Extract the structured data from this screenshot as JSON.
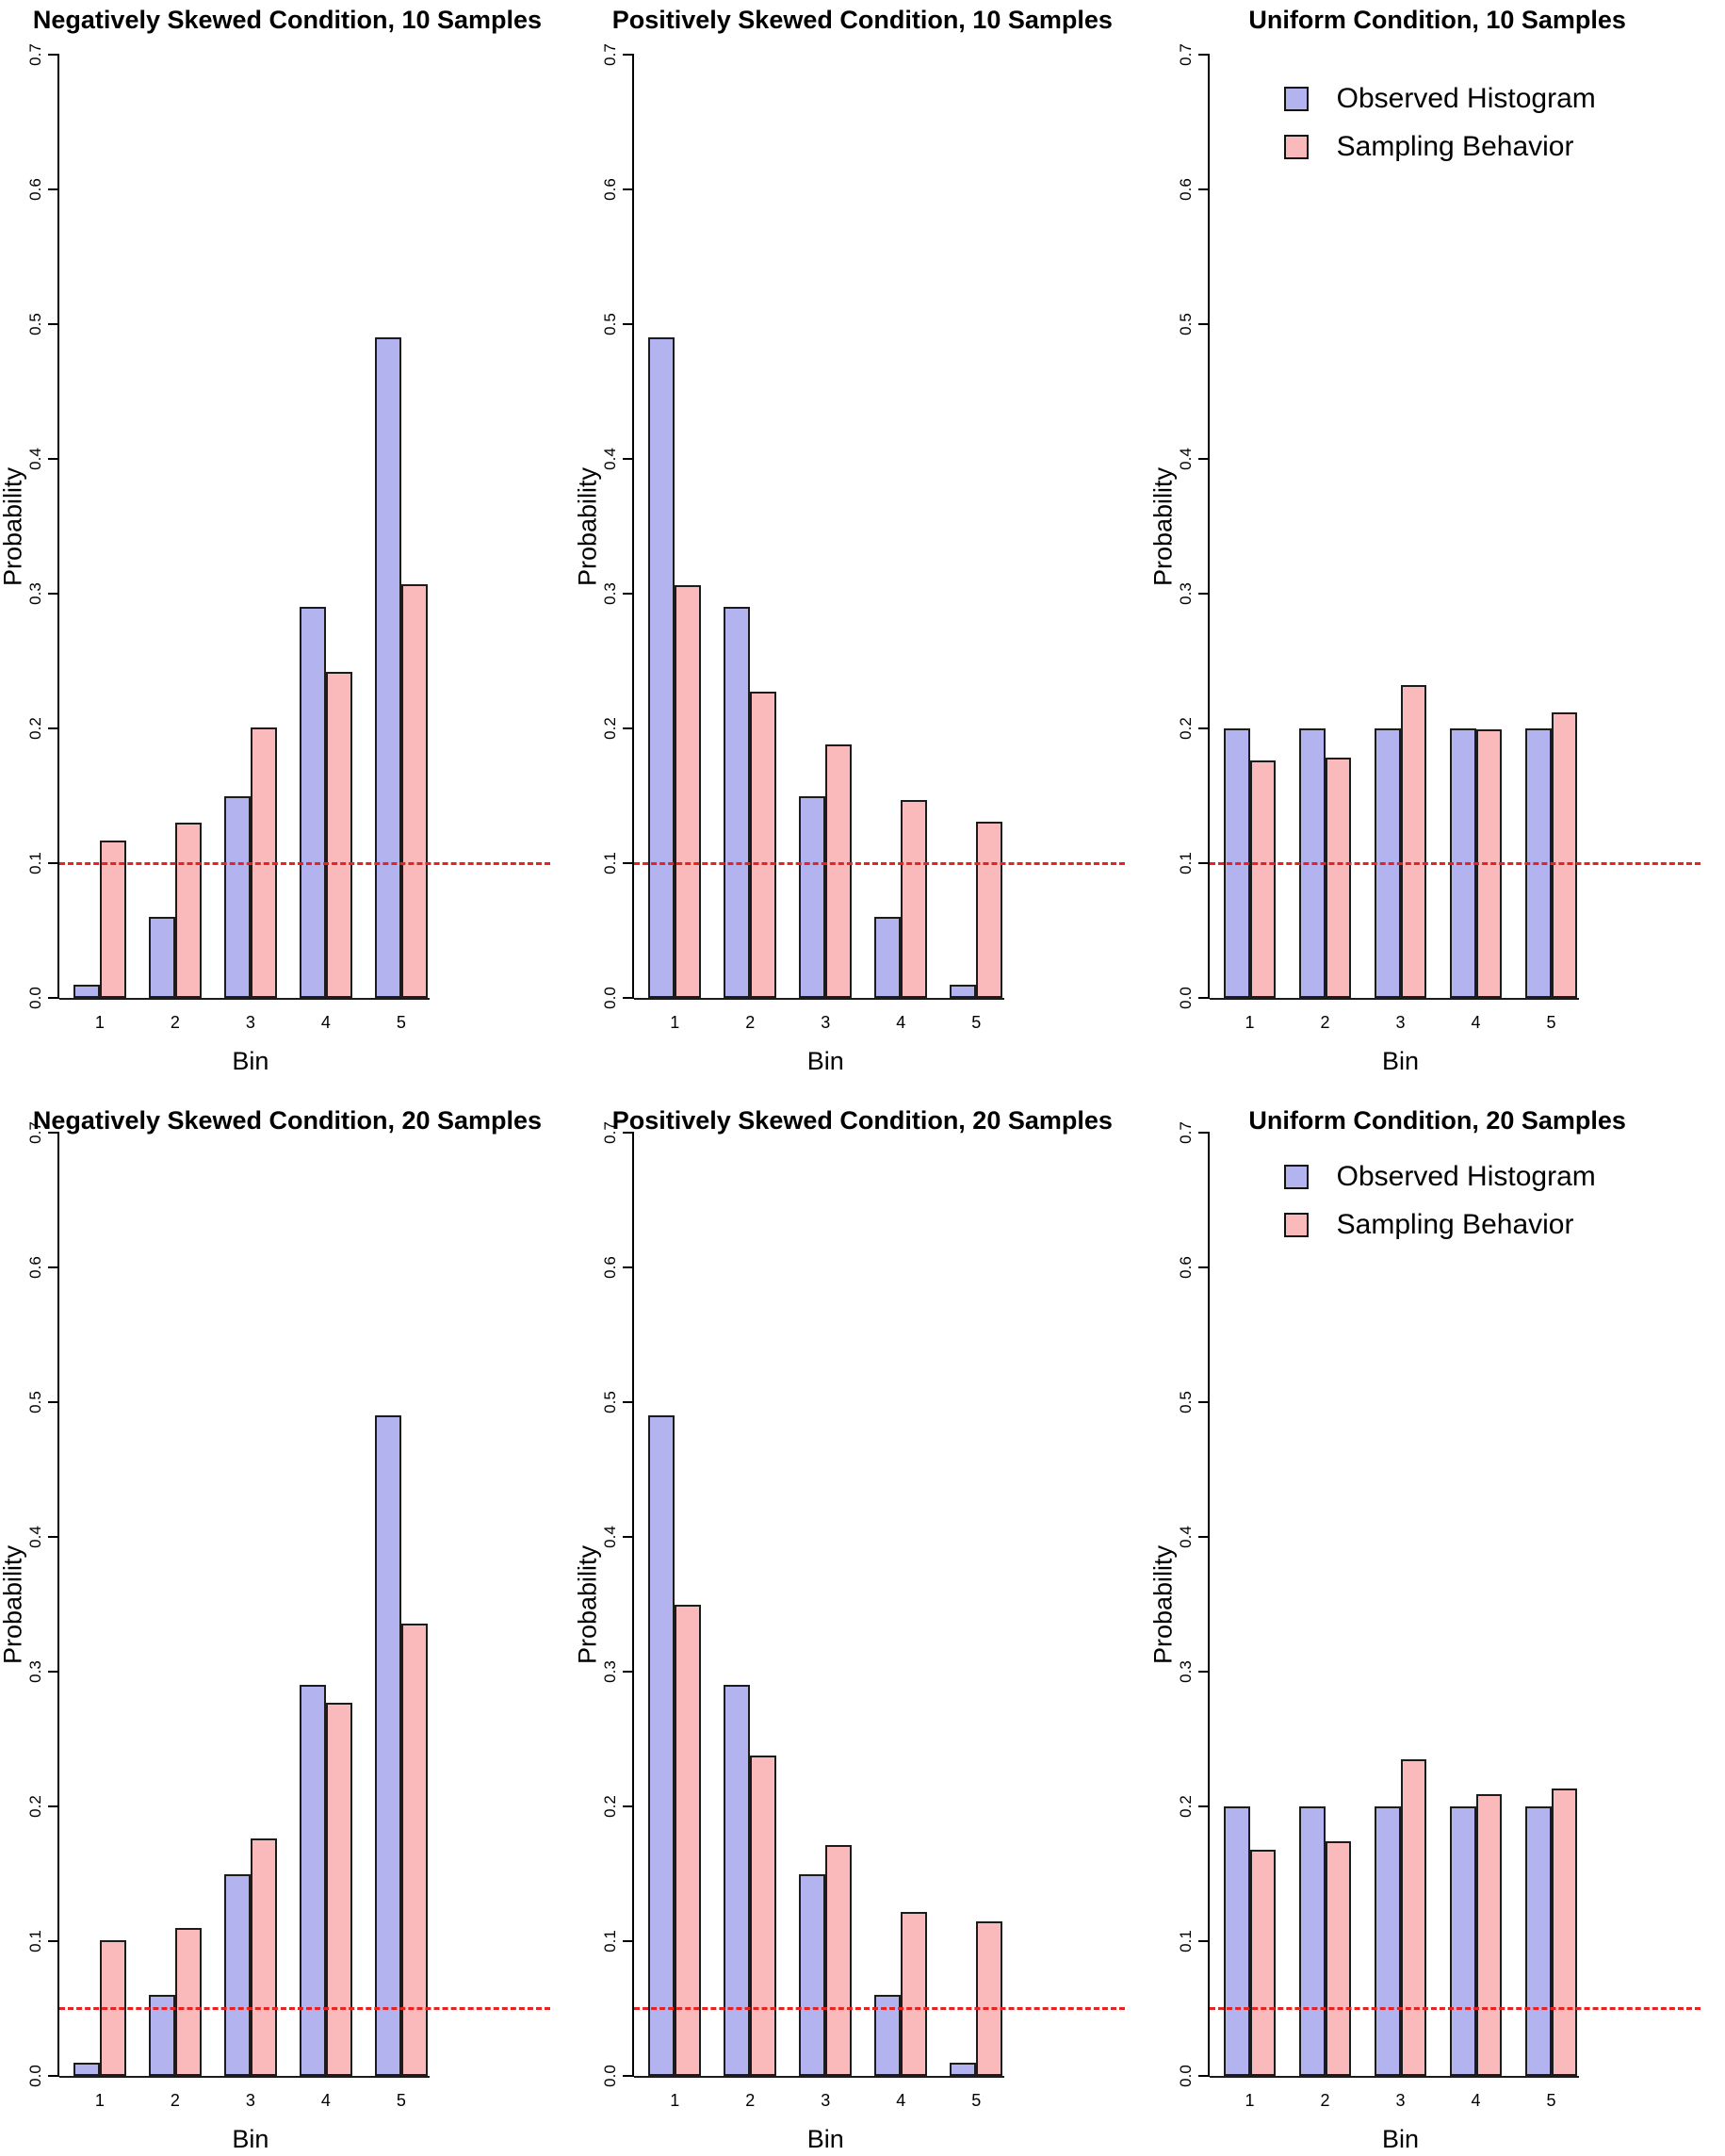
{
  "figure": {
    "rows": 2,
    "cols": 3,
    "description": "Grouped bar charts of observed histogram vs sampling behavior probabilities by bin"
  },
  "legend": {
    "items": [
      {
        "label": "Observed Histogram",
        "color": "#b3b3f0"
      },
      {
        "label": "Sampling Behavior",
        "color": "#fab9ba"
      }
    ]
  },
  "axes": {
    "xlabel": "Bin",
    "ylabel": "Probability",
    "ylim": [
      0,
      0.7
    ],
    "yticks": [
      "0.0",
      "0.1",
      "0.2",
      "0.3",
      "0.4",
      "0.5",
      "0.6",
      "0.7"
    ],
    "categories": [
      "1",
      "2",
      "3",
      "4",
      "5"
    ]
  },
  "ref_line_color": "#e62320",
  "bar_colors": {
    "observed": "#b3b3f0",
    "sampling": "#fab9ba",
    "border": "#1c1c1c"
  },
  "chart_data": [
    {
      "type": "bar",
      "title": "Negatively Skewed Condition, 10 Samples",
      "xlabel": "Bin",
      "ylabel": "Probability",
      "ylim": [
        0,
        0.7
      ],
      "categories": [
        "1",
        "2",
        "3",
        "4",
        "5"
      ],
      "ref_line": 0.1,
      "show_legend": false,
      "series": [
        {
          "name": "Observed Histogram",
          "values": [
            0.01,
            0.06,
            0.15,
            0.29,
            0.49
          ]
        },
        {
          "name": "Sampling Behavior",
          "values": [
            0.117,
            0.13,
            0.201,
            0.242,
            0.307
          ]
        }
      ]
    },
    {
      "type": "bar",
      "title": "Positively Skewed Condition, 10 Samples",
      "xlabel": "Bin",
      "ylabel": "Probability",
      "ylim": [
        0,
        0.7
      ],
      "categories": [
        "1",
        "2",
        "3",
        "4",
        "5"
      ],
      "ref_line": 0.1,
      "show_legend": false,
      "series": [
        {
          "name": "Observed Histogram",
          "values": [
            0.49,
            0.29,
            0.15,
            0.06,
            0.01
          ]
        },
        {
          "name": "Sampling Behavior",
          "values": [
            0.306,
            0.227,
            0.188,
            0.147,
            0.131
          ]
        }
      ]
    },
    {
      "type": "bar",
      "title": "Uniform Condition, 10 Samples",
      "xlabel": "Bin",
      "ylabel": "Probability",
      "ylim": [
        0,
        0.7
      ],
      "categories": [
        "1",
        "2",
        "3",
        "4",
        "5"
      ],
      "ref_line": 0.1,
      "show_legend": true,
      "series": [
        {
          "name": "Observed Histogram",
          "values": [
            0.2,
            0.2,
            0.2,
            0.2,
            0.2
          ]
        },
        {
          "name": "Sampling Behavior",
          "values": [
            0.176,
            0.178,
            0.232,
            0.199,
            0.212
          ]
        }
      ]
    },
    {
      "type": "bar",
      "title": "Negatively Skewed Condition, 20 Samples",
      "xlabel": "Bin",
      "ylabel": "Probability",
      "ylim": [
        0,
        0.7
      ],
      "categories": [
        "1",
        "2",
        "3",
        "4",
        "5"
      ],
      "ref_line": 0.05,
      "show_legend": false,
      "series": [
        {
          "name": "Observed Histogram",
          "values": [
            0.01,
            0.06,
            0.15,
            0.29,
            0.49
          ]
        },
        {
          "name": "Sampling Behavior",
          "values": [
            0.101,
            0.11,
            0.176,
            0.277,
            0.336
          ]
        }
      ]
    },
    {
      "type": "bar",
      "title": "Positively Skewed Condition, 20 Samples",
      "xlabel": "Bin",
      "ylabel": "Probability",
      "ylim": [
        0,
        0.7
      ],
      "categories": [
        "1",
        "2",
        "3",
        "4",
        "5"
      ],
      "ref_line": 0.05,
      "show_legend": false,
      "series": [
        {
          "name": "Observed Histogram",
          "values": [
            0.49,
            0.29,
            0.15,
            0.06,
            0.01
          ]
        },
        {
          "name": "Sampling Behavior",
          "values": [
            0.35,
            0.238,
            0.171,
            0.122,
            0.115
          ]
        }
      ]
    },
    {
      "type": "bar",
      "title": "Uniform Condition, 20 Samples",
      "xlabel": "Bin",
      "ylabel": "Probability",
      "ylim": [
        0,
        0.7
      ],
      "categories": [
        "1",
        "2",
        "3",
        "4",
        "5"
      ],
      "ref_line": 0.05,
      "show_legend": true,
      "series": [
        {
          "name": "Observed Histogram",
          "values": [
            0.2,
            0.2,
            0.2,
            0.2,
            0.2
          ]
        },
        {
          "name": "Sampling Behavior",
          "values": [
            0.168,
            0.174,
            0.235,
            0.209,
            0.213
          ]
        }
      ]
    }
  ]
}
